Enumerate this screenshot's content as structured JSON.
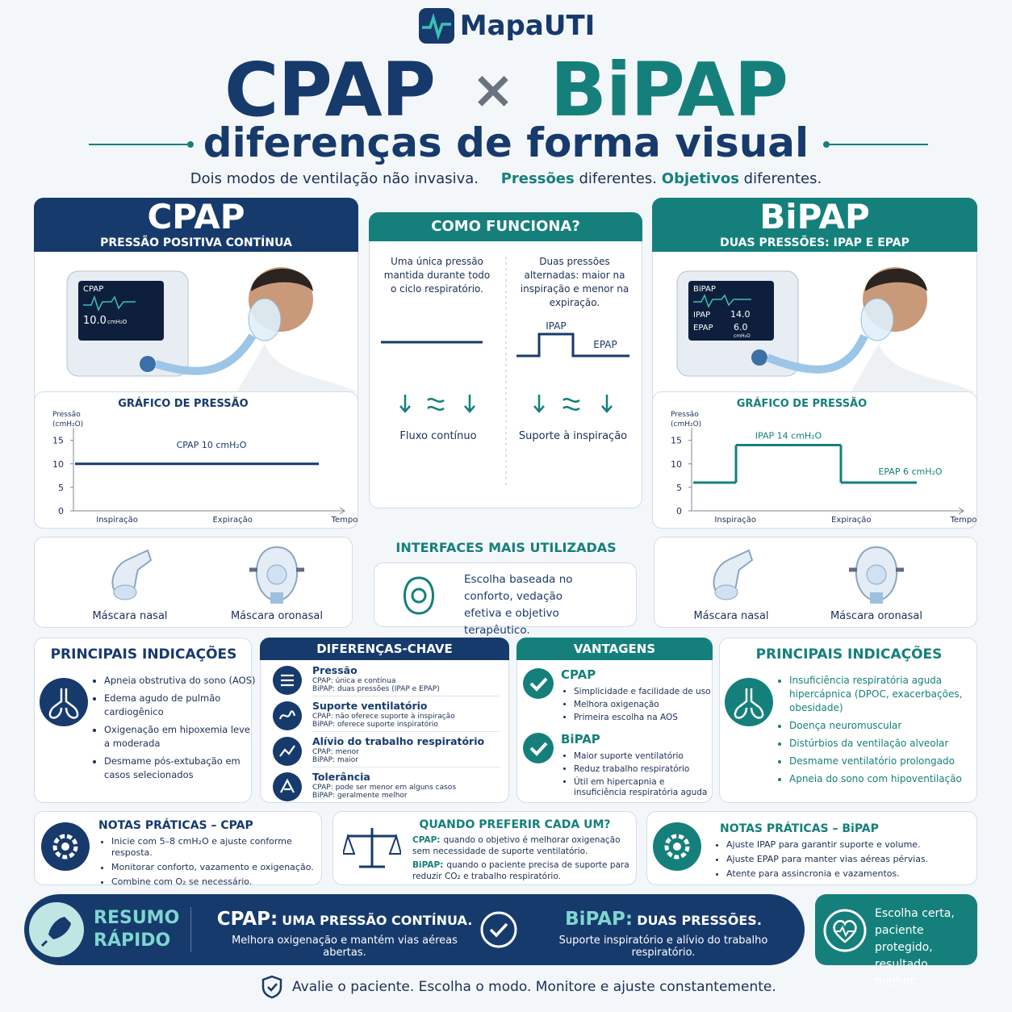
{
  "header": {
    "brand": "MapaUTI",
    "title_left": "CPAP",
    "title_sep": "×",
    "title_right": "BiPAP",
    "subtitle": "diferenças de forma visual",
    "tagline": "Dois modos de ventilação não invasiva.",
    "tagline_parts": [
      "Pressões",
      "diferentes.",
      "Objetivos",
      "diferentes."
    ]
  },
  "cpap": {
    "title": "CPAP",
    "subtitle": "PRESSÃO POSITIVA CONTÍNUA",
    "monitor": {
      "label": "CPAP",
      "value": "10.0",
      "unit": "cmH₂O"
    },
    "chart": {
      "title": "GRÁFICO DE PRESSÃO",
      "y_label_lines": [
        "Pressão",
        "(cmH₂O)"
      ],
      "ylim": [
        0,
        17
      ],
      "yticks": [
        0,
        5,
        10,
        15
      ],
      "x_labels": [
        "Inspiração",
        "Expiração"
      ],
      "x_title": "Tempo",
      "levels": [
        {
          "label": "CPAP 10 cmH₂O",
          "value": 10
        }
      ]
    }
  },
  "bipap": {
    "title": "BiPAP",
    "subtitle": "DUAS PRESSÕES: IPAP E EPAP",
    "monitor": {
      "label": "BiPAP",
      "rows": [
        [
          "IPAP",
          "14.0"
        ],
        [
          "EPAP",
          "6.0"
        ]
      ],
      "unit": "cmH₂O"
    },
    "chart": {
      "title": "GRÁFICO DE PRESSÃO",
      "y_label_lines": [
        "Pressão",
        "(cmH₂O)"
      ],
      "ylim": [
        0,
        17
      ],
      "yticks": [
        0,
        5,
        10,
        15
      ],
      "x_labels": [
        "Inspiração",
        "Expiração"
      ],
      "x_title": "Tempo",
      "levels": [
        {
          "label": "IPAP 14 cmH₂O",
          "value": 14
        },
        {
          "label": "EPAP 6 cmH₂O",
          "value": 6
        }
      ]
    }
  },
  "how": {
    "title": "COMO FUNCIONA?",
    "left_text": "Uma única pressão mantida durante todo o ciclo respiratório.",
    "right_text": "Duas pressões alternadas: maior na inspiração e menor na expiração.",
    "ipap": "IPAP",
    "epap": "EPAP",
    "left_caption": "Fluxo contínuo",
    "right_caption": "Suporte à inspiração"
  },
  "interfaces": {
    "title": "INTERFACES MAIS UTILIZADAS",
    "text": "Escolha baseada no conforto, vedação efetiva e objetivo terapêutico.",
    "left": [
      "Máscara nasal",
      "Máscara oronasal"
    ],
    "right": [
      "Máscara nasal",
      "Máscara oronasal"
    ]
  },
  "cpap_indications": {
    "title": "PRINCIPAIS INDICAÇÕES",
    "items": [
      "Apneia obstrutiva do sono (AOS)",
      "Edema agudo de pulmão cardiogênico",
      "Oxigenação em hipoxemia leve a moderada",
      "Desmame pós-extubação em casos selecionados"
    ]
  },
  "key_differences": {
    "title": "DIFERENÇAS-CHAVE",
    "items": [
      {
        "title": "Pressão",
        "cpap": "CPAP: única e contínua",
        "bipap": "BiPAP: duas pressões (IPAP e EPAP)"
      },
      {
        "title": "Suporte ventilatório",
        "cpap": "CPAP: não oferece suporte à inspiração",
        "bipap": "BiPAP: oferece suporte inspiratório"
      },
      {
        "title": "Alívio do trabalho respiratório",
        "cpap": "CPAP: menor",
        "bipap": "BiPAP: maior"
      },
      {
        "title": "Tolerância",
        "cpap": "CPAP: pode ser menor em alguns casos",
        "bipap": "BiPAP: geralmente melhor"
      }
    ]
  },
  "advantages": {
    "title": "VANTAGENS",
    "groups": [
      {
        "name": "CPAP",
        "items": [
          "Simplicidade e facilidade de uso",
          "Melhora oxigenação",
          "Primeira escolha na AOS"
        ]
      },
      {
        "name": "BiPAP",
        "items": [
          "Maior suporte ventilatório",
          "Reduz trabalho respiratório",
          "Útil em hipercapnia e insuficiência respiratória aguda"
        ]
      }
    ]
  },
  "bipap_indications": {
    "title": "PRINCIPAIS INDICAÇÕES",
    "items": [
      "Insuficiência respiratória aguda hipercápnica (DPOC, exacerbações, obesidade)",
      "Doença neuromuscular",
      "Distúrbios da ventilação alveolar",
      "Desmame ventilatório prolongado",
      "Apneia do sono com hipoventilação"
    ]
  },
  "notes_cpap": {
    "title": "NOTAS PRÁTICAS – CPAP",
    "items": [
      "Inicie com 5–8 cmH₂O e ajuste conforme resposta.",
      "Monitorar conforto, vazamento e oxigenação.",
      "Combine com O₂ se necessário."
    ]
  },
  "when": {
    "title": "QUANDO PREFERIR CADA UM?",
    "items": [
      {
        "label": "CPAP:",
        "text": "quando o objetivo é melhorar oxigenação sem necessidade de suporte ventilatório."
      },
      {
        "label": "BiPAP:",
        "text": "quando o paciente precisa de suporte para reduzir CO₂ e trabalho respiratório."
      }
    ]
  },
  "notes_bipap": {
    "title": "NOTAS PRÁTICAS – BiPAP",
    "items": [
      "Ajuste IPAP para garantir suporte e volume.",
      "Ajuste EPAP para manter vias aéreas pérvias.",
      "Atente para assincronia e vazamentos."
    ]
  },
  "summary": {
    "title": "RESUMO RÁPIDO",
    "cpap_head": "CPAP:",
    "cpap_title": "UMA PRESSÃO CONTÍNUA.",
    "cpap_text": "Melhora oxigenação e mantém vias aéreas abertas.",
    "bipap_head": "BiPAP:",
    "bipap_title": "DUAS PRESSÕES.",
    "bipap_text": "Suporte inspiratório e alívio do trabalho respiratório."
  },
  "badge": "Escolha certa, paciente protegido, resultado melhor.",
  "footer": "Avalie o paciente. Escolha o modo. Monitore e ajuste constantemente."
}
